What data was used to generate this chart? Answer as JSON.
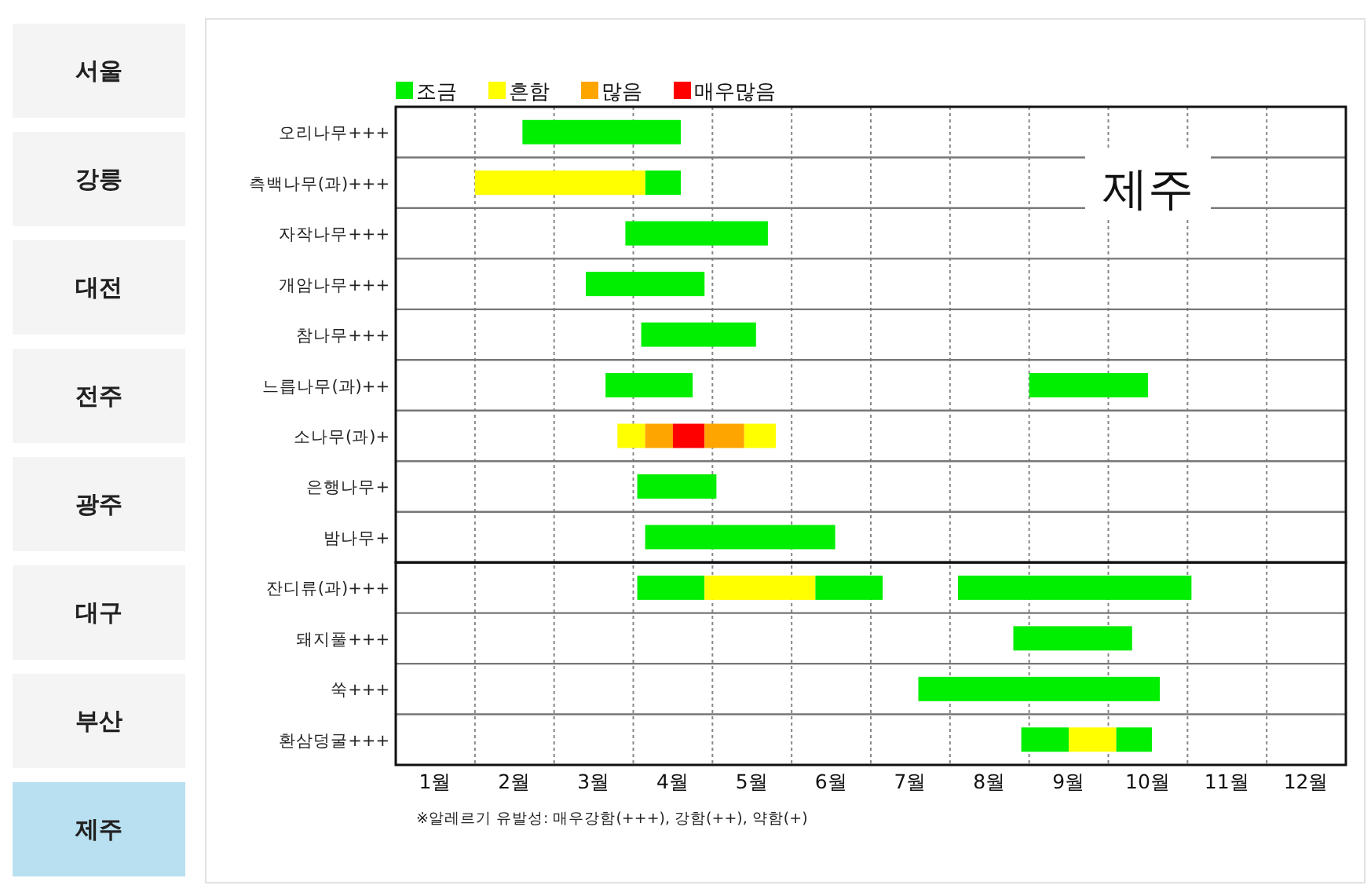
{
  "chart_data": [
    {
      "type": "other",
      "annotations": [
        "서울",
        "강릉",
        "대전",
        "전주",
        "광주",
        "대구",
        "부산",
        "제주"
      ],
      "colors": [
        "#f4f4f4",
        "#f4f4f4",
        "#f4f4f4",
        "#f4f4f4",
        "#f4f4f4",
        "#f4f4f4",
        "#f4f4f4",
        "#b8e0f0"
      ]
    },
    {
      "type": "bar",
      "orientation": "horizontal",
      "title": "제주",
      "categories": [
        "오리나무+++",
        "측백나무(과)+++",
        "자작나무+++",
        "개암나무+++",
        "참나무+++",
        "느릅나무(과)++",
        "소나무(과)+",
        "은행나무+",
        "밤나무+",
        "잔디류(과)+++",
        "돼지풀+++",
        "쑥+++",
        "환삼덩굴+++"
      ],
      "series": [
        {
          "name": "조금",
          "color": "#00ee00",
          "base": [
            1.6,
            3.15,
            2.9,
            2.4,
            3.1,
            2.65,
            null,
            3.05,
            3.15,
            3.05,
            7.8,
            6.6,
            7.9
          ],
          "values": [
            2.0,
            0.45,
            1.8,
            1.5,
            1.45,
            1.1,
            null,
            1.0,
            2.4,
            0.85,
            1.5,
            3.05,
            0.6
          ]
        },
        {
          "name": "흔함",
          "color": "#ffff00",
          "base": [
            null,
            1.0,
            null,
            null,
            null,
            null,
            2.8,
            null,
            null,
            3.9,
            null,
            null,
            8.5
          ],
          "values": [
            null,
            2.15,
            null,
            null,
            null,
            null,
            0.35,
            null,
            null,
            1.4,
            null,
            null,
            0.6
          ]
        },
        {
          "name": "많음",
          "color": "#ffa500",
          "base": [
            null,
            null,
            null,
            null,
            null,
            null,
            3.15,
            null,
            null,
            null,
            null,
            null,
            null
          ],
          "values": [
            null,
            null,
            null,
            null,
            null,
            null,
            0.35,
            null,
            null,
            null,
            null,
            null,
            null
          ]
        },
        {
          "name": "매우많음",
          "color": "#ff0000",
          "base": [
            null,
            null,
            null,
            null,
            null,
            null,
            3.5,
            null,
            null,
            null,
            null,
            null,
            null
          ],
          "values": [
            null,
            null,
            null,
            null,
            null,
            null,
            0.4,
            null,
            null,
            null,
            null,
            null,
            null
          ]
        },
        {
          "color": "#00ee00",
          "base": [
            null,
            null,
            null,
            null,
            null,
            8.0,
            null,
            null,
            null,
            5.3,
            null,
            null,
            9.1
          ],
          "values": [
            null,
            null,
            null,
            null,
            null,
            1.5,
            null,
            null,
            null,
            0.85,
            null,
            null,
            0.45
          ]
        },
        {
          "color": "#00ee00",
          "base": [
            null,
            null,
            null,
            null,
            null,
            null,
            null,
            null,
            null,
            7.1,
            null,
            null,
            null
          ],
          "values": [
            null,
            null,
            null,
            null,
            null,
            null,
            null,
            null,
            null,
            2.95,
            null,
            null,
            null
          ]
        },
        {
          "color": "#ffff00",
          "base": [
            null,
            null,
            null,
            null,
            null,
            null,
            4.4,
            null,
            null,
            null,
            null,
            null,
            null
          ],
          "values": [
            null,
            null,
            null,
            null,
            null,
            null,
            0.4,
            null,
            null,
            null,
            null,
            null,
            null
          ]
        },
        {
          "color": "#ffa500",
          "base": [
            null,
            null,
            null,
            null,
            null,
            null,
            3.9,
            null,
            null,
            null,
            null,
            null,
            null
          ],
          "values": [
            null,
            null,
            null,
            null,
            null,
            null,
            0.5,
            null,
            null,
            null,
            null,
            null,
            null
          ]
        }
      ],
      "xlim": [
        0,
        12
      ],
      "xticks": [
        {
          "value": 0.5,
          "label": "1월"
        },
        {
          "value": 1.5,
          "label": "2월"
        },
        {
          "value": 2.5,
          "label": "3월"
        },
        {
          "value": 3.5,
          "label": "4월"
        },
        {
          "value": 4.5,
          "label": "5월"
        },
        {
          "value": 5.5,
          "label": "6월"
        },
        {
          "value": 6.5,
          "label": "7월"
        },
        {
          "value": 7.5,
          "label": "8월"
        },
        {
          "value": 8.5,
          "label": "9월"
        },
        {
          "value": 9.5,
          "label": "10월"
        },
        {
          "value": 10.5,
          "label": "11월"
        },
        {
          "value": 11.5,
          "label": "12월"
        },
        {
          "value": 1,
          "label": null
        },
        {
          "value": 2,
          "label": null
        },
        {
          "value": 3,
          "label": null
        },
        {
          "value": 4,
          "label": null
        },
        {
          "value": 5,
          "label": null
        },
        {
          "value": 6,
          "label": null
        },
        {
          "value": 7,
          "label": null
        },
        {
          "value": 8,
          "label": null
        },
        {
          "value": 9,
          "label": null
        },
        {
          "value": 10,
          "label": null
        },
        {
          "value": 11,
          "label": null
        }
      ],
      "grid": true,
      "legend": "top left",
      "annotations": [
        "※알레르기 유발성: 매우강함(+++), 강함(++), 약함(+)"
      ]
    }
  ]
}
